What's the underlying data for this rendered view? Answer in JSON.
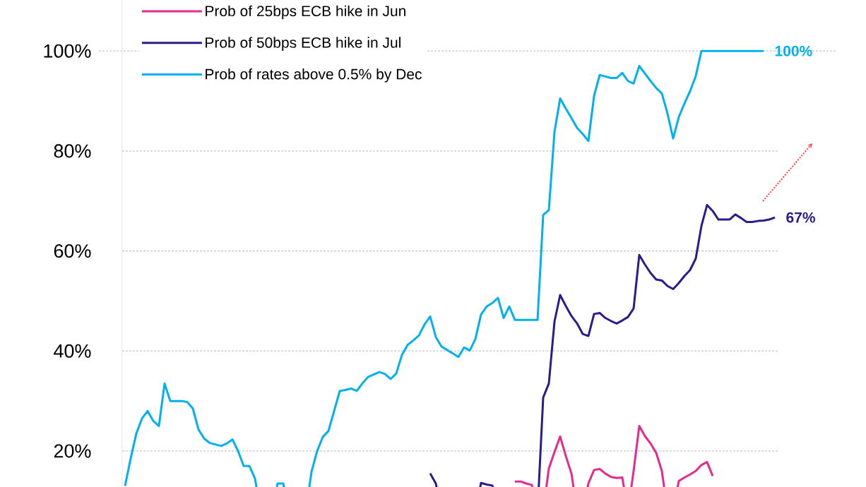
{
  "chart_data": {
    "type": "line",
    "categories": [
      null,
      null,
      null,
      null,
      null,
      null,
      null,
      null,
      null,
      null,
      null,
      null,
      null,
      null,
      null,
      null,
      null,
      null,
      null,
      null,
      null,
      null,
      null,
      null,
      null,
      null,
      null,
      null,
      null,
      null,
      null,
      null,
      null,
      null,
      null,
      null,
      null,
      null,
      null,
      null,
      null,
      null,
      null,
      null,
      null,
      null,
      null,
      null,
      null,
      null,
      null,
      null,
      null,
      null,
      null,
      null,
      null,
      null,
      null,
      null,
      null,
      null,
      null,
      null,
      null,
      null,
      null,
      null,
      null,
      null,
      null,
      null,
      null,
      null,
      null,
      null,
      null,
      null,
      null,
      null,
      null,
      null,
      null,
      null,
      null,
      null,
      null,
      null,
      null,
      null,
      null,
      null,
      null,
      null,
      null,
      null,
      null,
      null,
      null,
      null,
      null,
      null,
      null,
      null,
      null,
      null,
      null,
      null,
      null,
      null,
      null,
      null,
      null,
      null,
      null,
      null
    ],
    "series": [
      {
        "name": "Prob of 25bps ECB hike in Jun",
        "color": "#e6298e",
        "values": [
          null,
          null,
          null,
          null,
          null,
          null,
          null,
          null,
          null,
          null,
          null,
          null,
          null,
          null,
          null,
          null,
          null,
          null,
          null,
          null,
          null,
          null,
          null,
          null,
          null,
          null,
          null,
          null,
          null,
          null,
          null,
          null,
          null,
          null,
          null,
          null,
          null,
          null,
          null,
          null,
          null,
          null,
          null,
          null,
          null,
          null,
          null,
          null,
          null,
          null,
          null,
          null,
          null,
          null,
          null,
          null,
          null,
          null,
          null,
          null,
          null,
          null,
          null,
          null,
          null,
          null,
          null,
          null,
          null,
          13.9,
          13.9,
          13.5,
          13.2,
          null,
          null,
          16.5,
          19.8,
          22.9,
          19,
          15.5,
          null,
          null,
          13.5,
          16.2,
          16.4,
          15.5,
          14.8,
          14.6,
          14.7,
          null,
          16,
          25,
          23,
          21.5,
          19.6,
          16,
          null,
          null,
          14,
          14.7,
          15.3,
          16,
          17.2,
          17.8,
          15,
          null,
          null,
          null,
          null,
          null,
          null,
          null,
          null,
          null,
          null,
          null
        ]
      },
      {
        "name": "Prob of 50bps ECB hike in Jul",
        "color": "#2b1b8c",
        "values": [
          null,
          null,
          null,
          null,
          null,
          null,
          null,
          null,
          null,
          null,
          null,
          null,
          null,
          null,
          null,
          null,
          null,
          null,
          null,
          null,
          null,
          null,
          null,
          null,
          null,
          null,
          null,
          null,
          null,
          null,
          null,
          null,
          null,
          null,
          null,
          null,
          null,
          null,
          null,
          null,
          null,
          null,
          null,
          null,
          null,
          null,
          null,
          null,
          null,
          null,
          null,
          null,
          null,
          null,
          15.5,
          13.5,
          null,
          null,
          null,
          null,
          null,
          null,
          null,
          13.6,
          13.3,
          13.1,
          null,
          null,
          null,
          null,
          null,
          null,
          null,
          null,
          30.7,
          33.5,
          45.9,
          51.2,
          49,
          47,
          45.5,
          43.4,
          43,
          47.4,
          47.6,
          46.6,
          46,
          45.5,
          46.1,
          46.8,
          48.5,
          59.2,
          57.3,
          55.6,
          54.3,
          54.1,
          53,
          52.4,
          53.6,
          55,
          56.2,
          58.5,
          65,
          69.2,
          68,
          66.3,
          66.3,
          66.3,
          67.3,
          66.6,
          65.8,
          65.8,
          66,
          66.1,
          66.3,
          66.7
        ]
      },
      {
        "name": "Prob of rates above 0.5% by Dec",
        "color": "#00b0f0",
        "values": [
          13,
          18.5,
          23.5,
          26.5,
          28,
          26,
          25,
          33.5,
          30,
          30,
          30,
          29.8,
          28.5,
          24.3,
          22.5,
          21.6,
          21.3,
          21,
          21.5,
          22.3,
          20,
          17,
          17,
          14.5,
          null,
          null,
          null,
          13.5,
          13.5,
          null,
          null,
          null,
          null,
          15.8,
          20,
          22.8,
          24,
          28,
          32,
          32.2,
          32.5,
          32,
          33.5,
          34.8,
          35.3,
          35.8,
          35.4,
          34.4,
          35.5,
          39.2,
          41.2,
          42.1,
          43.1,
          45.3,
          46.9,
          42.8,
          40.9,
          40.2,
          39.5,
          38.8,
          40.7,
          40.1,
          42.4,
          47.3,
          48.9,
          49.6,
          50.6,
          46.6,
          48.9,
          46.2,
          46.2,
          46.2,
          46.2,
          46.2,
          67.2,
          68.2,
          83.8,
          90.5,
          88.5,
          86.6,
          84.6,
          83.4,
          82,
          91,
          95.2,
          94.9,
          94.6,
          94.6,
          95.6,
          94,
          93.5,
          97,
          95.5,
          94,
          92.6,
          91.5,
          87.5,
          82.5,
          86.8,
          89.5,
          92,
          95,
          100,
          100,
          100,
          100,
          100,
          100,
          100,
          100,
          100,
          100,
          100,
          100,
          null,
          null
        ]
      }
    ],
    "yticks": [
      {
        "value": 20,
        "label": "20%"
      },
      {
        "value": 40,
        "label": "40%"
      },
      {
        "value": 60,
        "label": "60%"
      },
      {
        "value": 80,
        "label": "80%"
      },
      {
        "value": 100,
        "label": "100%"
      }
    ],
    "ylim": [
      12.8,
      110.2
    ],
    "grid": "y",
    "legend": "top left",
    "marker": "none",
    "line_style": "solid",
    "annotations": [
      "100%",
      "67%"
    ]
  }
}
